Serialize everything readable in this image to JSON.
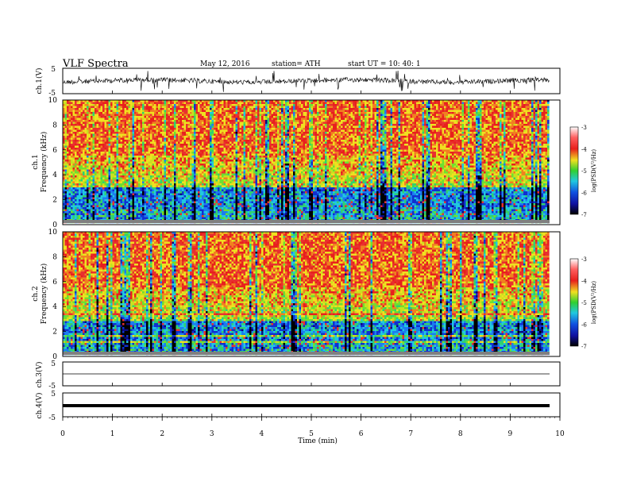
{
  "header": {
    "title": "VLF  Spectra",
    "date": "May 12, 2016",
    "station": "station= ATH",
    "start": "start  UT  =   10: 40: 1"
  },
  "chart_data": [
    {
      "type": "line",
      "ylabel": "ch.1(V)",
      "ylim": [
        -5,
        5
      ],
      "y_ticks": [
        "5",
        "-5"
      ],
      "description_series": "waveform amplitude, dense noisy trace near 0 V"
    },
    {
      "type": "heatmap",
      "ylabel": "ch.1\nFrequency  (kHz)",
      "ylabel_lines": [
        "ch.1",
        "Frequency  (kHz)"
      ],
      "ylim": [
        0,
        10
      ],
      "y_ticks": [
        "0",
        "2",
        "4",
        "6",
        "8",
        "10"
      ],
      "colorbar": {
        "label": "log(PSD(V²/Hz)",
        "range": [
          -7,
          -3
        ],
        "ticks": [
          "-3",
          "-4",
          "-5",
          "-6",
          "-7"
        ]
      }
    },
    {
      "type": "heatmap",
      "ylabel": "ch.2\nFrequency  (kHz)",
      "ylabel_lines": [
        "ch.2",
        "Frequency  (kHz)"
      ],
      "ylim": [
        0,
        10
      ],
      "y_ticks": [
        "0",
        "2",
        "4",
        "6",
        "8",
        "10"
      ],
      "colorbar": {
        "label": "log(PSD(V²/Hz)",
        "range": [
          -7,
          -3
        ],
        "ticks": [
          "-3",
          "-4",
          "-5",
          "-6",
          "-7"
        ]
      }
    },
    {
      "type": "line",
      "ylabel": "ch.3(V)",
      "ylim": [
        -5,
        5
      ],
      "y_ticks": [
        "5",
        "-5"
      ]
    },
    {
      "type": "line",
      "ylabel": "ch.4(V)",
      "ylim": [
        -5,
        5
      ],
      "y_ticks": [
        "5",
        "-5"
      ]
    }
  ],
  "xaxis": {
    "label": "Time  (min)",
    "range": [
      0,
      10
    ],
    "ticks": [
      "0",
      "1",
      "2",
      "3",
      "4",
      "5",
      "6",
      "7",
      "8",
      "9",
      "10"
    ]
  },
  "colors": {
    "high": "#e8201c",
    "mid_high": "#f0e020",
    "mid": "#30d030",
    "mid_low": "#20c8e0",
    "low": "#1020d0",
    "min": "#000000"
  }
}
